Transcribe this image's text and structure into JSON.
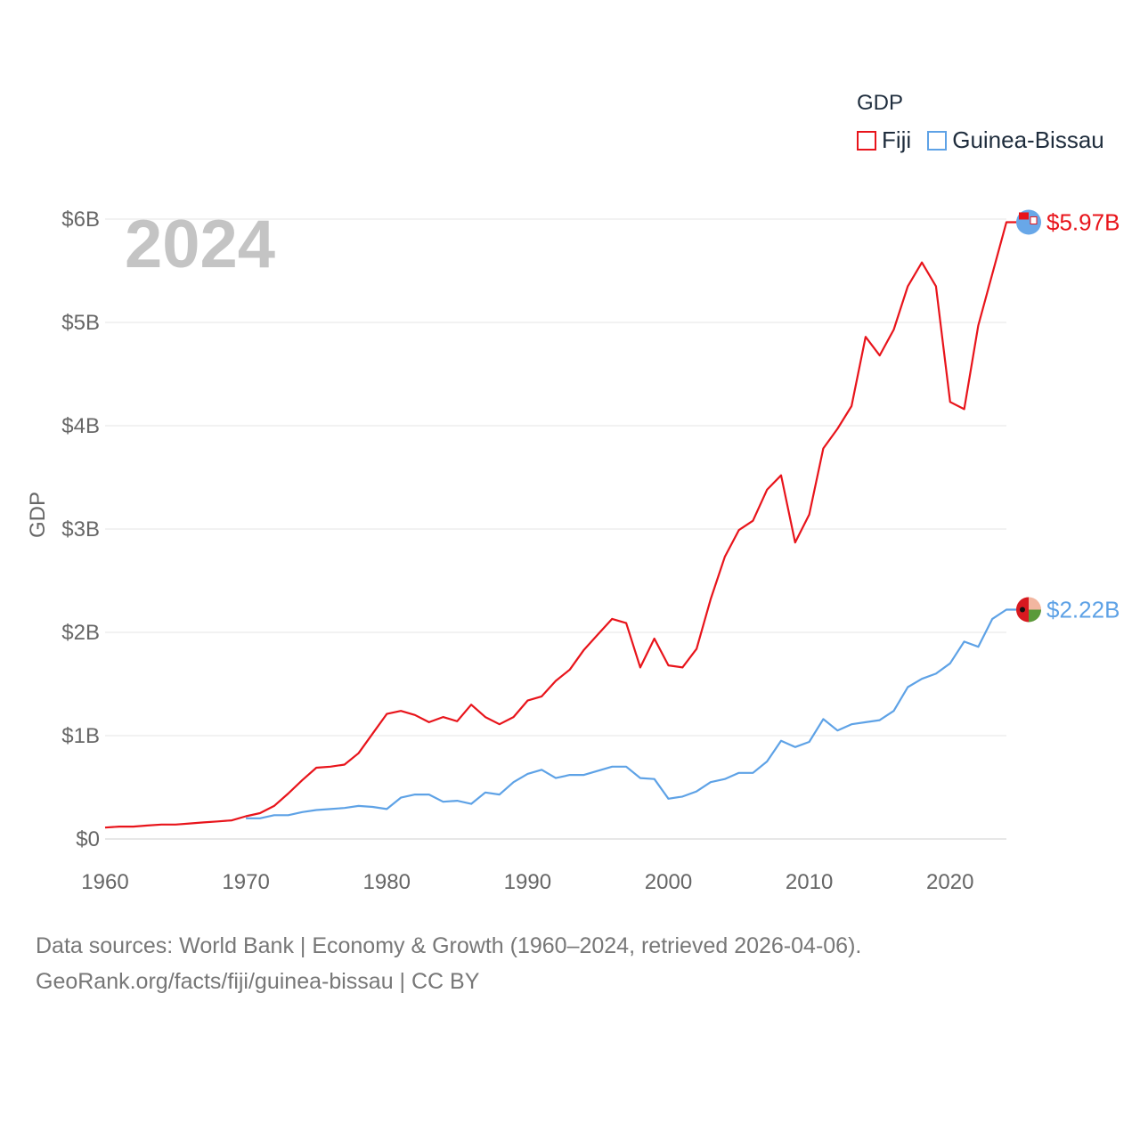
{
  "legend": {
    "title": "GDP",
    "items": [
      {
        "label": "Fiji",
        "color": "#e8141b"
      },
      {
        "label": "Guinea-Bissau",
        "color": "#5ea2e6"
      }
    ]
  },
  "footer": {
    "line1": "Data sources: World Bank | Economy & Growth (1960–2024, retrieved 2026-04-06).",
    "line2": "GeoRank.org/facts/fiji/guinea-bissau | CC BY"
  },
  "chart_data": {
    "type": "line",
    "title": "GDP",
    "ylabel": "GDP",
    "xlabel": "",
    "year_label": "2024",
    "xlim": [
      1960,
      2024
    ],
    "ylim": [
      0,
      6
    ],
    "y_unit": "billion USD",
    "x_ticks": [
      "1960",
      "1970",
      "1980",
      "1990",
      "2000",
      "2010",
      "2020"
    ],
    "y_ticks": [
      "$0",
      "$1B",
      "$2B",
      "$3B",
      "$4B",
      "$5B",
      "$6B"
    ],
    "grid": true,
    "series": [
      {
        "name": "Fiji",
        "color": "#e8141b",
        "end_label": "$5.97B",
        "x": [
          1960,
          1961,
          1962,
          1963,
          1964,
          1965,
          1966,
          1967,
          1968,
          1969,
          1970,
          1971,
          1972,
          1973,
          1974,
          1975,
          1976,
          1977,
          1978,
          1979,
          1980,
          1981,
          1982,
          1983,
          1984,
          1985,
          1986,
          1987,
          1988,
          1989,
          1990,
          1991,
          1992,
          1993,
          1994,
          1995,
          1996,
          1997,
          1998,
          1999,
          2000,
          2001,
          2002,
          2003,
          2004,
          2005,
          2006,
          2007,
          2008,
          2009,
          2010,
          2011,
          2012,
          2013,
          2014,
          2015,
          2016,
          2017,
          2018,
          2019,
          2020,
          2021,
          2022,
          2023,
          2024
        ],
        "values": [
          0.11,
          0.12,
          0.12,
          0.13,
          0.14,
          0.14,
          0.15,
          0.16,
          0.17,
          0.18,
          0.22,
          0.25,
          0.32,
          0.44,
          0.57,
          0.69,
          0.7,
          0.72,
          0.83,
          1.02,
          1.21,
          1.24,
          1.2,
          1.13,
          1.18,
          1.14,
          1.3,
          1.18,
          1.11,
          1.18,
          1.34,
          1.38,
          1.53,
          1.64,
          1.83,
          1.98,
          2.13,
          2.09,
          1.66,
          1.94,
          1.68,
          1.66,
          1.84,
          2.32,
          2.73,
          2.99,
          3.08,
          3.38,
          3.52,
          2.87,
          3.14,
          3.78,
          3.97,
          4.19,
          4.86,
          4.68,
          4.93,
          5.35,
          5.58,
          5.35,
          4.23,
          4.16,
          4.97,
          5.47,
          5.97
        ]
      },
      {
        "name": "Guinea-Bissau",
        "color": "#5ea2e6",
        "end_label": "$2.22B",
        "x": [
          1970,
          1971,
          1972,
          1973,
          1974,
          1975,
          1976,
          1977,
          1978,
          1979,
          1980,
          1981,
          1982,
          1983,
          1984,
          1985,
          1986,
          1987,
          1988,
          1989,
          1990,
          1991,
          1992,
          1993,
          1994,
          1995,
          1996,
          1997,
          1998,
          1999,
          2000,
          2001,
          2002,
          2003,
          2004,
          2005,
          2006,
          2007,
          2008,
          2009,
          2010,
          2011,
          2012,
          2013,
          2014,
          2015,
          2016,
          2017,
          2018,
          2019,
          2020,
          2021,
          2022,
          2023,
          2024
        ],
        "values": [
          0.2,
          0.2,
          0.23,
          0.23,
          0.26,
          0.28,
          0.29,
          0.3,
          0.32,
          0.31,
          0.29,
          0.4,
          0.43,
          0.43,
          0.36,
          0.37,
          0.34,
          0.45,
          0.43,
          0.55,
          0.63,
          0.67,
          0.59,
          0.62,
          0.62,
          0.66,
          0.7,
          0.7,
          0.59,
          0.58,
          0.39,
          0.41,
          0.46,
          0.55,
          0.58,
          0.64,
          0.64,
          0.75,
          0.95,
          0.89,
          0.94,
          1.16,
          1.05,
          1.11,
          1.13,
          1.15,
          1.24,
          1.47,
          1.55,
          1.6,
          1.7,
          1.91,
          1.86,
          2.13,
          2.22
        ]
      }
    ]
  }
}
